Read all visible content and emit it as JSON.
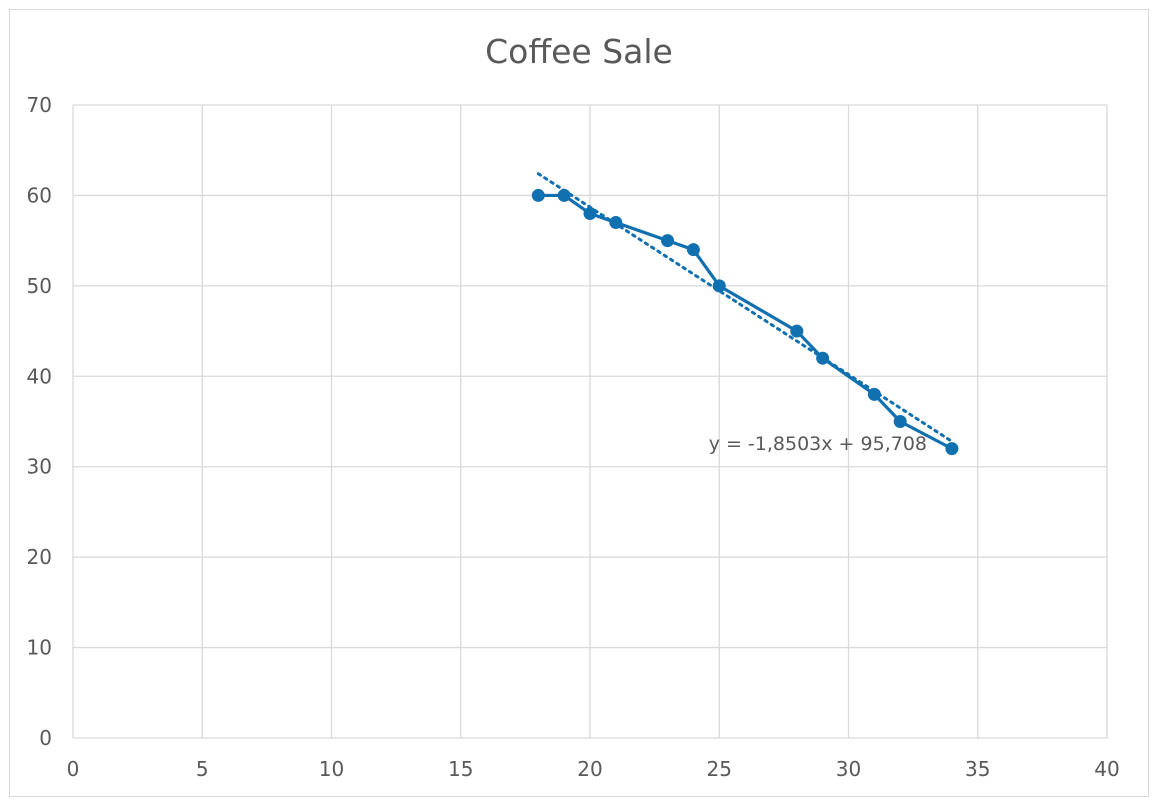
{
  "chart_data": {
    "type": "scatter",
    "title": "Coffee Sale",
    "xlabel": "",
    "ylabel": "",
    "xlim": [
      0,
      40
    ],
    "ylim": [
      0,
      70
    ],
    "x_ticks": [
      0,
      5,
      10,
      15,
      20,
      25,
      30,
      35,
      40
    ],
    "y_ticks": [
      0,
      10,
      20,
      30,
      40,
      50,
      60,
      70
    ],
    "grid": true,
    "legend": "none",
    "series": [
      {
        "x": [
          18,
          19,
          20,
          21,
          23,
          24,
          25,
          28,
          29,
          31,
          32,
          34
        ],
        "y": [
          60,
          60,
          58,
          57,
          55,
          54,
          50,
          45,
          42,
          38,
          35,
          32
        ],
        "color": "#1070b0",
        "connected": true
      }
    ],
    "trendline": {
      "type": "linear",
      "slope": -1.8503,
      "intercept": 95.708,
      "x_range": [
        18,
        34
      ],
      "style": "dotted",
      "color": "#1070b0",
      "equation_label": "y = -1,8503x + 95,708"
    }
  }
}
